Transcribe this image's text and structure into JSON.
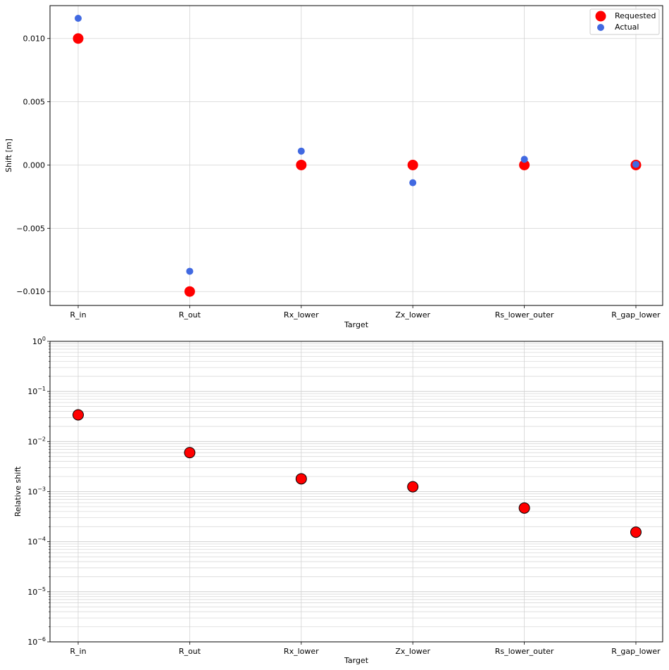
{
  "chart_data": [
    {
      "type": "scatter",
      "categories": [
        "R_in",
        "R_out",
        "Rx_lower",
        "Zx_lower",
        "Rs_lower_outer",
        "R_gap_lower"
      ],
      "series": [
        {
          "name": "Requested",
          "color": "#ff0000",
          "values": [
            0.01,
            -0.01,
            0.0,
            0.0,
            0.0,
            0.0
          ]
        },
        {
          "name": "Actual",
          "color": "#4169e1",
          "values": [
            0.0116,
            -0.0084,
            0.0011,
            -0.0014,
            0.00045,
            5e-05
          ]
        }
      ],
      "xlabel": "Target",
      "ylabel": "Shift [m]",
      "ylim": [
        -0.0111,
        0.0126
      ],
      "yticks": [
        -0.01,
        -0.005,
        0.0,
        0.005,
        0.01
      ],
      "yticklabels": [
        "−0.010",
        "−0.005",
        "0.000",
        "0.005",
        "0.010"
      ],
      "grid": true,
      "legend": "top-right"
    },
    {
      "type": "scatter",
      "categories": [
        "R_in",
        "R_out",
        "Rx_lower",
        "Zx_lower",
        "Rs_lower_outer",
        "R_gap_lower"
      ],
      "series": [
        {
          "color": "#ff0000",
          "edgecolor": "#000000",
          "values": [
            0.034,
            0.006,
            0.0018,
            0.00125,
            0.00047,
            0.000155
          ]
        }
      ],
      "xlabel": "Target",
      "ylabel": "Relative shift",
      "yscale": "log",
      "ylim": [
        1e-06,
        1
      ],
      "yticks": [
        1e-06,
        1e-05,
        0.0001,
        0.001,
        0.01,
        0.1,
        1
      ],
      "yticklabel_base": "10",
      "yticklabel_exponents": [
        "−6",
        "−5",
        "−4",
        "−3",
        "−2",
        "−1",
        "0"
      ],
      "grid": true
    }
  ]
}
